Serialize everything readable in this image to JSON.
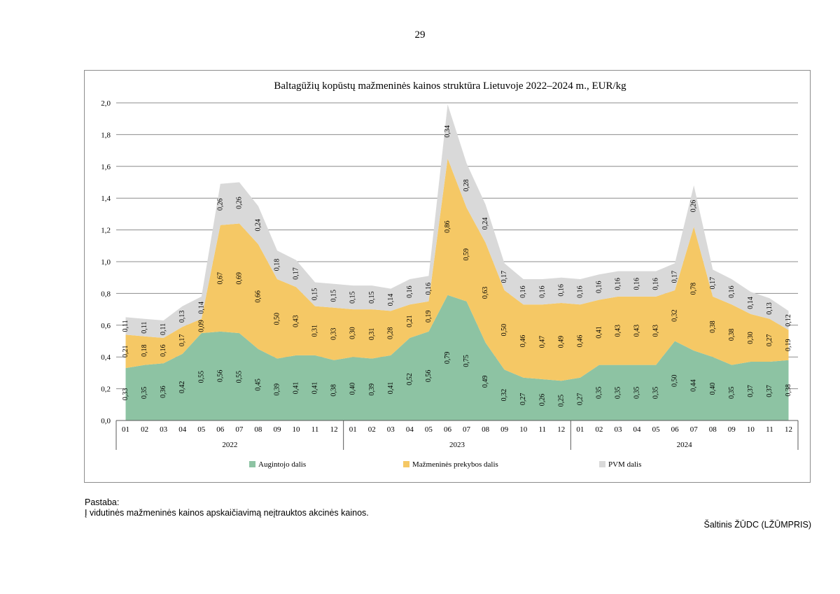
{
  "page_number": "29",
  "note": {
    "label": "Pastaba:",
    "text": "Į vidutinės mažmeninės kainos apskaičiavimą neįtrauktos akcinės kainos."
  },
  "source": "Šaltinis ŽŪDC (LŽŪMPRIS)",
  "colors": {
    "grower": "#8dc3a3",
    "retail": "#f5c865",
    "vat": "#d9d9d9"
  },
  "chart_data": {
    "type": "area",
    "stacked": true,
    "title": "Baltagūžių kopūstų mažmeninės kainos struktūra Lietuvoje 2022–2024 m., EUR/kg",
    "ylim": [
      0,
      2.0
    ],
    "yticks": [
      "0,0",
      "0,2",
      "0,4",
      "0,6",
      "0,8",
      "1,0",
      "1,2",
      "1,4",
      "1,6",
      "1,8",
      "2,0"
    ],
    "categories": [
      "01",
      "02",
      "03",
      "04",
      "05",
      "06",
      "07",
      "08",
      "09",
      "10",
      "11",
      "12",
      "01",
      "02",
      "03",
      "04",
      "05",
      "06",
      "07",
      "08",
      "09",
      "10",
      "11",
      "12",
      "01",
      "02",
      "03",
      "04",
      "05",
      "06",
      "07",
      "08",
      "09",
      "10",
      "11",
      "12"
    ],
    "years": [
      "2022",
      "2023",
      "2024"
    ],
    "legend_position": "bottom",
    "series": [
      {
        "name": "Augintojo dalis",
        "color": "#8dc3a3",
        "values": [
          0.33,
          0.35,
          0.36,
          0.42,
          0.55,
          0.56,
          0.55,
          0.45,
          0.39,
          0.41,
          0.41,
          0.38,
          0.4,
          0.39,
          0.41,
          0.52,
          0.56,
          0.79,
          0.75,
          0.49,
          0.32,
          0.27,
          0.26,
          0.25,
          0.27,
          0.35,
          0.35,
          0.35,
          0.35,
          0.5,
          0.44,
          0.4,
          0.35,
          0.37,
          0.37,
          0.38
        ],
        "labels": [
          "0,33",
          "0,35",
          "0,36",
          "0,42",
          "0,55",
          "0,56",
          "0,55",
          "0,45",
          "0,39",
          "0,41",
          "0,41",
          "0,38",
          "0,40",
          "0,39",
          "0,41",
          "0,52",
          "0,56",
          "0,79",
          "0,75",
          "0,49",
          "0,32",
          "0,27",
          "0,26",
          "0,25",
          "0,27",
          "0,35",
          "0,35",
          "0,35",
          "0,35",
          "0,50",
          "0,44",
          "0,40",
          "0,35",
          "0,37",
          "0,37",
          "0,38"
        ]
      },
      {
        "name": "Mažmeninės prekybos dalis",
        "color": "#f5c865",
        "values": [
          0.21,
          0.18,
          0.16,
          0.17,
          0.09,
          0.67,
          0.69,
          0.66,
          0.5,
          0.43,
          0.31,
          0.33,
          0.3,
          0.31,
          0.28,
          0.21,
          0.19,
          0.86,
          0.59,
          0.63,
          0.5,
          0.46,
          0.47,
          0.49,
          0.46,
          0.41,
          0.43,
          0.43,
          0.43,
          0.32,
          0.78,
          0.38,
          0.38,
          0.3,
          0.27,
          0.19
        ],
        "labels": [
          "0,21",
          "0,18",
          "0,16",
          "0,17",
          "0,09",
          "0,67",
          "0,69",
          "0,66",
          "0,50",
          "0,43",
          "0,31",
          "0,33",
          "0,30",
          "0,31",
          "0,28",
          "0,21",
          "0,19",
          "0,86",
          "0,59",
          "0,63",
          "0,50",
          "0,46",
          "0,47",
          "0,49",
          "0,46",
          "0,41",
          "0,43",
          "0,43",
          "0,43",
          "0,32",
          "0,78",
          "0,38",
          "0,38",
          "0,30",
          "0,27",
          "0,19"
        ]
      },
      {
        "name": "PVM dalis",
        "color": "#d9d9d9",
        "values": [
          0.11,
          0.11,
          0.11,
          0.13,
          0.14,
          0.26,
          0.26,
          0.24,
          0.18,
          0.17,
          0.15,
          0.15,
          0.15,
          0.15,
          0.14,
          0.16,
          0.16,
          0.34,
          0.28,
          0.24,
          0.17,
          0.16,
          0.16,
          0.16,
          0.16,
          0.16,
          0.16,
          0.16,
          0.16,
          0.17,
          0.26,
          0.17,
          0.16,
          0.14,
          0.13,
          0.12
        ],
        "labels": [
          "0,11",
          "0,11",
          "0,11",
          "0,13",
          "0,14",
          "0,26",
          "0,26",
          "0,24",
          "0,18",
          "0,17",
          "0,15",
          "0,15",
          "0,15",
          "0,15",
          "0,14",
          "0,16",
          "0,16",
          "0,34",
          "0,28",
          "0,24",
          "0,17",
          "0,16",
          "0,16",
          "0,16",
          "0,16",
          "0,16",
          "0,16",
          "0,16",
          "0,16",
          "0,17",
          "0,26",
          "0,17",
          "0,16",
          "0,14",
          "0,13",
          "0,12"
        ]
      }
    ]
  }
}
